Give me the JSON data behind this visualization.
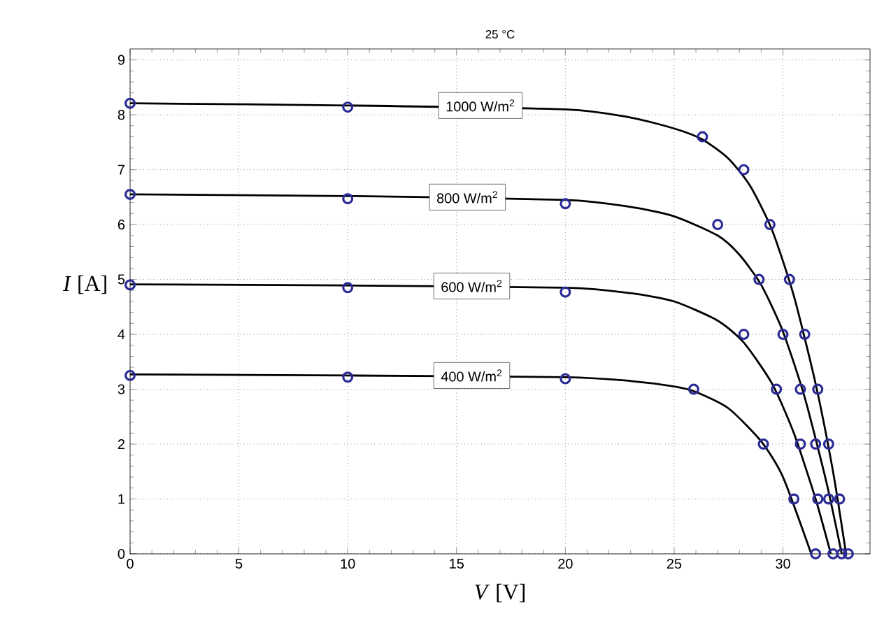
{
  "chart_data": {
    "type": "line",
    "title": "25 °C",
    "xlabel": "*V* [V]",
    "ylabel": "*I* [A]",
    "xlim": [
      0,
      34
    ],
    "ylim": [
      0,
      9.2
    ],
    "xticks": [
      0,
      5,
      10,
      15,
      20,
      25,
      30
    ],
    "yticks": [
      0,
      1,
      2,
      3,
      4,
      5,
      6,
      7,
      8,
      9
    ],
    "grid": true,
    "line_style": "solid",
    "annotations": [
      {
        "text": "1000 W/m$^{2}$",
        "x": 16.1,
        "y": 8.17
      },
      {
        "text": "800 W/m$^{2}$",
        "x": 15.5,
        "y": 6.5
      },
      {
        "text": "600 W/m$^{2}$",
        "x": 15.7,
        "y": 4.88
      },
      {
        "text": "400 W/m$^{2}$",
        "x": 15.7,
        "y": 3.25
      }
    ],
    "series": [
      {
        "color": "#000000",
        "marker": "none",
        "x": [
          0,
          10,
          20,
          23,
          25,
          26.3,
          27.5,
          28.5,
          29.5,
          30.5,
          31.5,
          32.3,
          32.9
        ],
        "values": [
          8.21,
          8.17,
          8.1,
          7.95,
          7.75,
          7.55,
          7.2,
          6.7,
          5.9,
          4.7,
          3.1,
          1.5,
          0
        ]
      },
      {
        "color": "#000000",
        "marker": "none",
        "x": [
          0,
          10,
          20,
          23,
          25,
          27,
          28,
          29,
          30,
          31,
          32,
          32.7
        ],
        "values": [
          6.55,
          6.52,
          6.45,
          6.32,
          6.15,
          5.8,
          5.45,
          4.9,
          4.05,
          2.85,
          1.3,
          0
        ]
      },
      {
        "color": "#000000",
        "marker": "none",
        "x": [
          0,
          10,
          20,
          23,
          25,
          27,
          28.2,
          29.5,
          30.5,
          31.5,
          32.2
        ],
        "values": [
          4.91,
          4.89,
          4.85,
          4.75,
          4.6,
          4.25,
          3.85,
          3.1,
          2.2,
          1.0,
          0
        ]
      },
      {
        "color": "#000000",
        "marker": "none",
        "x": [
          0,
          10,
          20,
          23,
          25,
          26,
          27.5,
          29,
          30,
          31.3
        ],
        "values": [
          3.27,
          3.25,
          3.22,
          3.15,
          3.05,
          2.95,
          2.65,
          2.05,
          1.4,
          0
        ]
      },
      {
        "type": "scatter",
        "color": "#2b2b96",
        "marker": "circle",
        "x": [
          0,
          10,
          26.3,
          28.2,
          29.4,
          30.3,
          31.0,
          31.6,
          32.1,
          32.6,
          33.0
        ],
        "values": [
          8.21,
          8.14,
          7.6,
          7.0,
          6.0,
          5.0,
          4.0,
          3.0,
          2.0,
          1.0,
          0
        ]
      },
      {
        "type": "scatter",
        "color": "#2b2b96",
        "marker": "circle",
        "x": [
          0,
          10,
          20,
          27.0,
          28.9,
          30.0,
          30.8,
          31.5,
          32.1,
          32.7
        ],
        "values": [
          6.55,
          6.47,
          6.38,
          6.0,
          5.0,
          4.0,
          3.0,
          2.0,
          1.0,
          0
        ]
      },
      {
        "type": "scatter",
        "color": "#2b2b96",
        "marker": "circle",
        "x": [
          0,
          10,
          20,
          28.2,
          29.7,
          30.8,
          31.6,
          32.3
        ],
        "values": [
          4.9,
          4.85,
          4.77,
          4.0,
          3.0,
          2.0,
          1.0,
          0
        ]
      },
      {
        "type": "scatter",
        "color": "#2b2b96",
        "marker": "circle",
        "x": [
          0,
          10,
          20,
          25.9,
          29.1,
          30.5,
          31.5
        ],
        "values": [
          3.25,
          3.22,
          3.19,
          3.0,
          2.0,
          1.0,
          0
        ]
      }
    ]
  }
}
